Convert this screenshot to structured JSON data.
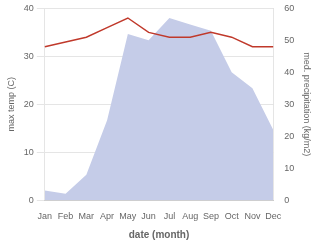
{
  "chart_data": {
    "type": "line",
    "categories": [
      "Jan",
      "Feb",
      "Mar",
      "Apr",
      "May",
      "Jun",
      "Jul",
      "Aug",
      "Sep",
      "Oct",
      "Nov",
      "Dec"
    ],
    "xlabel": "date (month)",
    "series": [
      {
        "name": "med. precipitation (kg/m2)",
        "type": "area",
        "color": "#c5cce8",
        "axis": "y2",
        "values": [
          3,
          2,
          8,
          25,
          52,
          50,
          57,
          55,
          53,
          40,
          35,
          22
        ]
      },
      {
        "name": "max temp (C)",
        "type": "line",
        "color": "#c0392b",
        "axis": "y",
        "values": [
          32,
          33,
          34,
          36,
          38,
          35,
          34,
          34,
          35,
          34,
          32,
          32
        ]
      }
    ],
    "ylim": [
      0,
      40
    ],
    "yticks": [
      0,
      10,
      20,
      30,
      40
    ],
    "y2lim": [
      0,
      60
    ],
    "y2ticks": [
      0,
      10,
      20,
      30,
      40,
      50,
      60
    ],
    "grid": true
  }
}
